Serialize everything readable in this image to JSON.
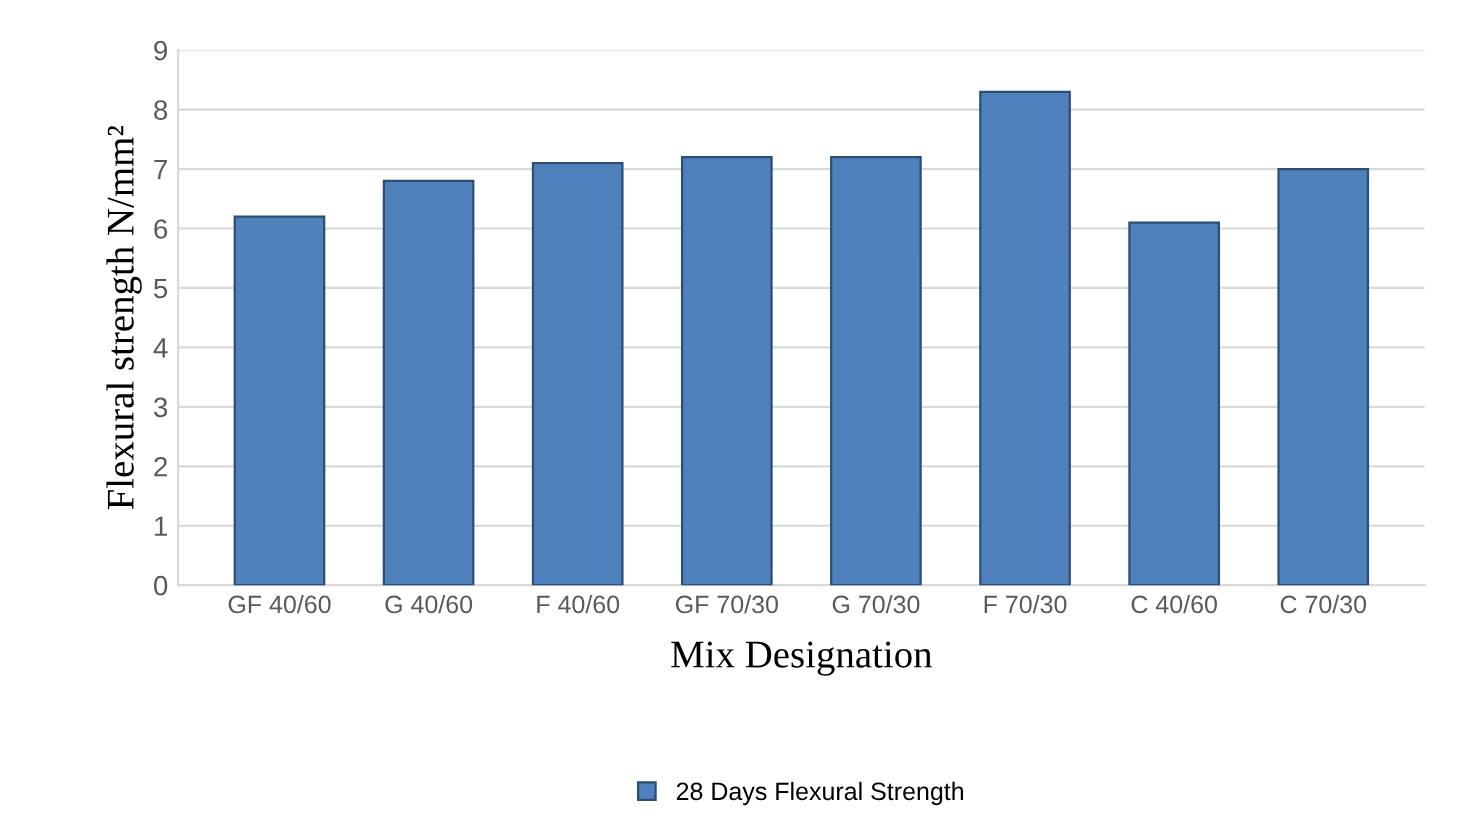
{
  "chart_data": {
    "type": "bar",
    "xlabel": "Mix Designation",
    "ylabel": "Flexural strength N/mm²",
    "categories": [
      "GF 40/60",
      "G 40/60",
      "F 40/60",
      "GF 70/30",
      "G 70/30",
      "F 70/30",
      "C 40/60",
      "C 70/30"
    ],
    "series": [
      {
        "name": "28 Days Flexural Strength",
        "color": "#4f81bd",
        "values": [
          6.2,
          6.8,
          7.1,
          7.2,
          7.2,
          8.3,
          6.1,
          7.0
        ]
      }
    ],
    "ylim": [
      0,
      9
    ],
    "yticks": [
      0,
      1,
      2,
      3,
      4,
      5,
      6,
      7,
      8,
      9
    ],
    "grid": "y",
    "legend": "bottom"
  }
}
